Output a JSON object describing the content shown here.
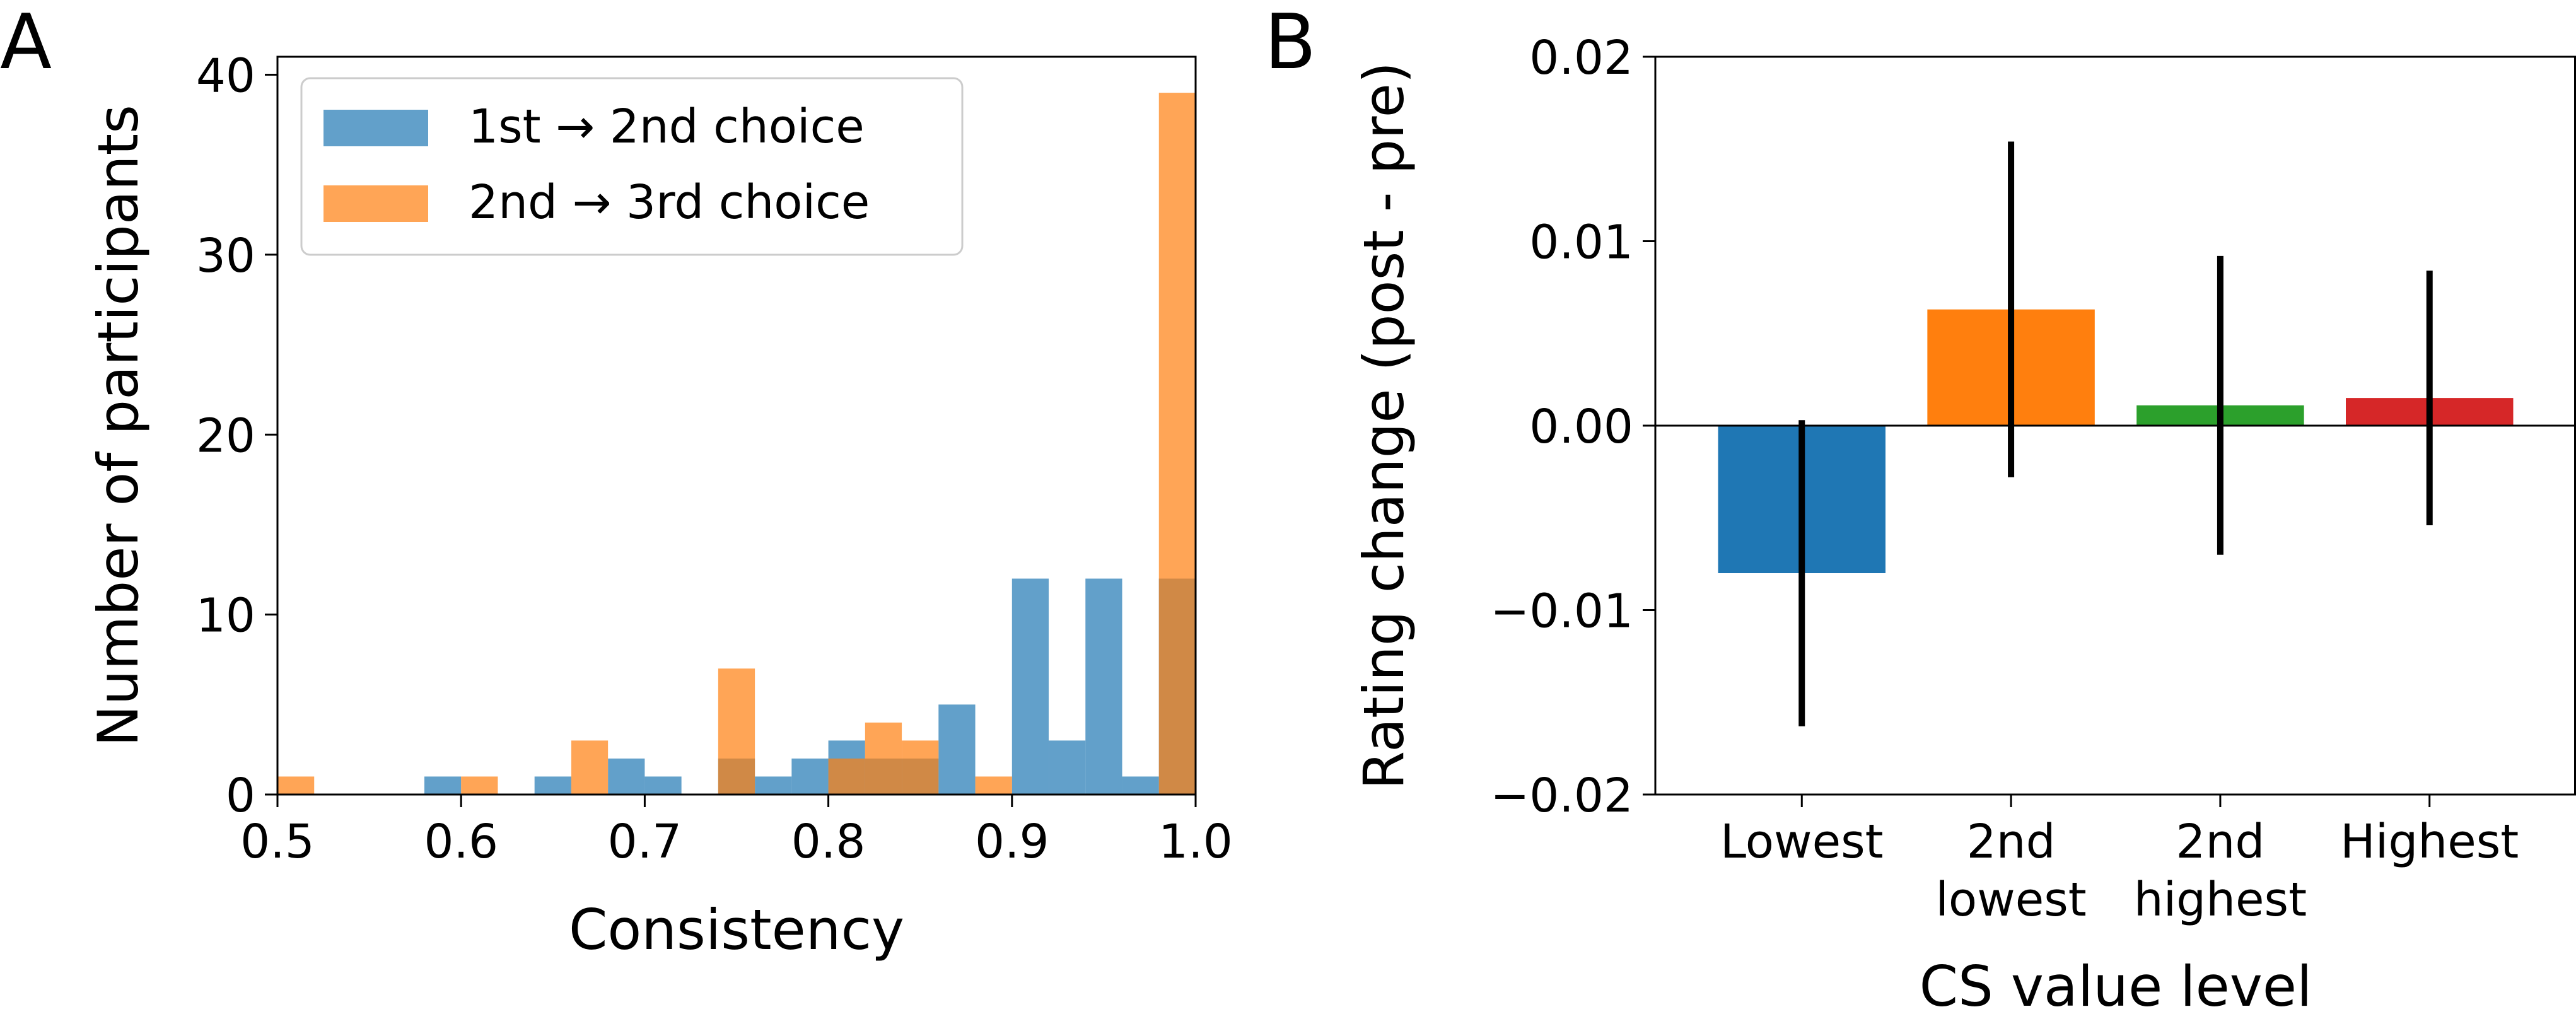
{
  "panels": {
    "a_letter": "A",
    "b_letter": "B"
  },
  "chart_data": [
    {
      "type": "histogram",
      "xlabel": "Consistency",
      "ylabel": "Number of participants",
      "xlim": [
        0.5,
        1.0
      ],
      "ylim": [
        0,
        41
      ],
      "xticks": [
        "0.5",
        "0.6",
        "0.7",
        "0.8",
        "0.9",
        "1.0"
      ],
      "yticks": [
        "0",
        "10",
        "20",
        "30",
        "40"
      ],
      "legend_position": "top-left",
      "bins": {
        "start": 0.5,
        "width": 0.02,
        "count": 25
      },
      "series": [
        {
          "name": "1st → 2nd choice",
          "color": "#1f77b4",
          "alpha": 0.7,
          "values": [
            0,
            0,
            0,
            0,
            1,
            0,
            0,
            1,
            0,
            2,
            1,
            0,
            2,
            1,
            2,
            3,
            2,
            2,
            5,
            0,
            12,
            3,
            12,
            1,
            12
          ]
        },
        {
          "name": "2nd → 3rd choice",
          "color": "#ff7f0e",
          "alpha": 0.7,
          "values": [
            1,
            0,
            0,
            0,
            0,
            1,
            0,
            0,
            3,
            0,
            0,
            0,
            7,
            0,
            0,
            2,
            4,
            3,
            0,
            1,
            0,
            0,
            0,
            0,
            39
          ]
        }
      ]
    },
    {
      "type": "bar",
      "xlabel": "CS value level",
      "ylabel": "Rating change (post - pre)",
      "ylim": [
        -0.02,
        0.02
      ],
      "yticks": [
        "0.02",
        "0.01",
        "0.00",
        "−0.01",
        "−0.02"
      ],
      "categories": [
        "Lowest",
        "2nd\nlowest",
        "2nd\nhighest",
        "Highest"
      ],
      "values": [
        -0.008,
        0.0063,
        0.0011,
        0.0015
      ],
      "errors": [
        0.0083,
        0.0091,
        0.0081,
        0.0069
      ],
      "colors": [
        "#1f77b4",
        "#ff7f0e",
        "#2ca02c",
        "#d62728"
      ],
      "zero_line": true
    }
  ]
}
